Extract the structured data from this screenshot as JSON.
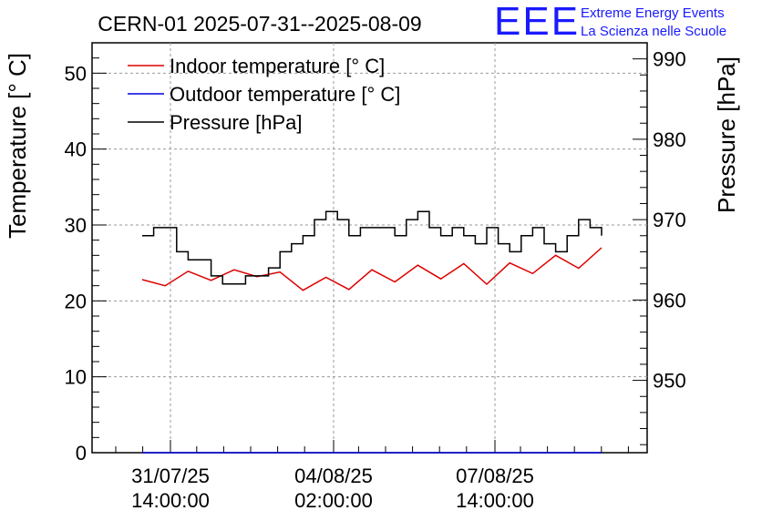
{
  "chart_data": {
    "type": "line",
    "title": "CERN-01 2025-07-31--2025-08-09",
    "ylabel": "Temperature [° C]",
    "y2label": "Pressure [hPa]",
    "ylim": [
      0,
      54
    ],
    "y2lim": [
      941,
      992
    ],
    "yticks": [
      "0",
      "10",
      "20",
      "30",
      "40",
      "50"
    ],
    "y2ticks": [
      "950",
      "960",
      "970",
      "980",
      "990"
    ],
    "xticks": [
      {
        "line1": "31/07/25",
        "line2": "14:00:00"
      },
      {
        "line1": "04/08/25",
        "line2": "02:00:00"
      },
      {
        "line1": "07/08/25",
        "line2": "14:00:00"
      }
    ],
    "grid": true,
    "legend_position": "top-left",
    "series": [
      {
        "name": "Indoor temperature [° C]",
        "color": "#dd0000",
        "axis": "left",
        "x": [
          "2025-07-30 14:00",
          "2025-07-31 02:00",
          "2025-07-31 14:00",
          "2025-08-01 02:00",
          "2025-08-01 14:00",
          "2025-08-02 02:00",
          "2025-08-02 14:00",
          "2025-08-03 02:00",
          "2025-08-03 14:00",
          "2025-08-04 02:00",
          "2025-08-04 14:00",
          "2025-08-05 02:00",
          "2025-08-05 14:00",
          "2025-08-06 02:00",
          "2025-08-06 14:00",
          "2025-08-07 02:00",
          "2025-08-07 14:00",
          "2025-08-08 02:00",
          "2025-08-08 14:00",
          "2025-08-09 02:00",
          "2025-08-09 14:00"
        ],
        "values": [
          22.8,
          22.0,
          23.9,
          22.7,
          24.1,
          23.2,
          23.8,
          21.4,
          23.1,
          21.5,
          24.1,
          22.5,
          24.7,
          22.9,
          24.9,
          22.2,
          25.0,
          23.6,
          26.0,
          24.3,
          27.0
        ]
      },
      {
        "name": "Outdoor temperature [° C]",
        "color": "#0000dd",
        "axis": "left",
        "x": [
          "2025-07-30 14:00",
          "2025-08-09 14:00"
        ],
        "values": [
          0,
          0
        ]
      },
      {
        "name": "Pressure [hPa]",
        "color": "#000000",
        "axis": "right",
        "x": [
          "2025-07-30 14:00",
          "2025-07-30 20:00",
          "2025-07-31 02:00",
          "2025-07-31 08:00",
          "2025-07-31 14:00",
          "2025-07-31 20:00",
          "2025-08-01 02:00",
          "2025-08-01 08:00",
          "2025-08-01 14:00",
          "2025-08-01 20:00",
          "2025-08-02 02:00",
          "2025-08-02 08:00",
          "2025-08-02 14:00",
          "2025-08-02 20:00",
          "2025-08-03 02:00",
          "2025-08-03 08:00",
          "2025-08-03 14:00",
          "2025-08-03 20:00",
          "2025-08-04 02:00",
          "2025-08-04 08:00",
          "2025-08-04 14:00",
          "2025-08-04 20:00",
          "2025-08-05 02:00",
          "2025-08-05 08:00",
          "2025-08-05 14:00",
          "2025-08-05 20:00",
          "2025-08-06 02:00",
          "2025-08-06 08:00",
          "2025-08-06 14:00",
          "2025-08-06 20:00",
          "2025-08-07 02:00",
          "2025-08-07 08:00",
          "2025-08-07 14:00",
          "2025-08-07 20:00",
          "2025-08-08 02:00",
          "2025-08-08 08:00",
          "2025-08-08 14:00",
          "2025-08-08 20:00",
          "2025-08-09 02:00",
          "2025-08-09 08:00",
          "2025-08-09 14:00"
        ],
        "values": [
          968,
          969,
          969,
          966,
          965,
          965,
          963,
          962,
          962,
          963,
          963,
          964,
          966,
          967,
          968,
          970,
          971,
          970,
          968,
          969,
          969,
          969,
          968,
          970,
          971,
          969,
          968,
          969,
          968,
          967,
          969,
          967,
          966,
          968,
          969,
          967,
          966,
          968,
          970,
          969,
          968
        ]
      }
    ]
  },
  "logo": {
    "letters": "EEE",
    "line1": "Extreme Energy Events",
    "line2": "La Scienza nelle Scuole"
  }
}
